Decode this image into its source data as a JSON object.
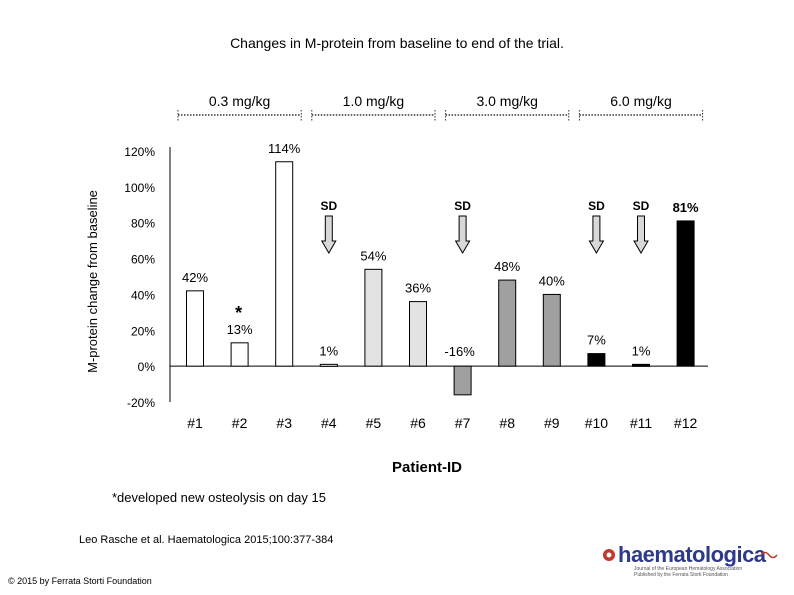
{
  "title": "Changes in M-protein from baseline to end of the trial.",
  "citation": "Leo Rasche et al. Haematologica 2015;100:377-384",
  "copyright": "© 2015 by Ferrata Storti Foundation",
  "logo": {
    "name": "haematologica",
    "line1": "Journal of the European Hematology Association",
    "line2": "Published by the Ferrata Storti Foundation"
  },
  "colors": {
    "white": "#ffffff",
    "light_gray": "#e3e3e3",
    "mid_gray": "#a0a0a0",
    "black": "#000000"
  },
  "chart_data": {
    "type": "bar",
    "ylabel": "M-protein change from baseline",
    "xlabel": "Patient-ID",
    "ylim": [
      -20,
      120
    ],
    "yticks": [
      120,
      100,
      80,
      60,
      40,
      20,
      0,
      -20
    ],
    "ytick_labels": [
      "120%",
      "100%",
      "80%",
      "60%",
      "40%",
      "20%",
      "0%",
      "-20%"
    ],
    "categories": [
      "#1",
      "#2",
      "#3",
      "#4",
      "#5",
      "#6",
      "#7",
      "#8",
      "#9",
      "#10",
      "#11",
      "#12"
    ],
    "values": [
      42,
      13,
      114,
      1,
      54,
      36,
      -16,
      48,
      40,
      7,
      1,
      81
    ],
    "value_labels": [
      "42%",
      "13%",
      "114%",
      "1%",
      "54%",
      "36%",
      "-16%",
      "48%",
      "40%",
      "7%",
      "1%",
      "81%"
    ],
    "fill_groups": [
      "white",
      "white",
      "white",
      "light_gray",
      "light_gray",
      "light_gray",
      "mid_gray",
      "mid_gray",
      "mid_gray",
      "black",
      "black",
      "black"
    ],
    "dose_groups": [
      {
        "label": "0.3 mg/kg",
        "start": 0,
        "end": 2
      },
      {
        "label": "1.0 mg/kg",
        "start": 3,
        "end": 5
      },
      {
        "label": "3.0 mg/kg",
        "start": 6,
        "end": 8
      },
      {
        "label": "6.0 mg/kg",
        "start": 9,
        "end": 11
      }
    ],
    "sd_label": "SD",
    "sd_patients": [
      3,
      6,
      9,
      10
    ],
    "asterisk_patient": 1,
    "asterisk_symbol": "*",
    "footnote": "*developed new osteolysis on day 15"
  }
}
